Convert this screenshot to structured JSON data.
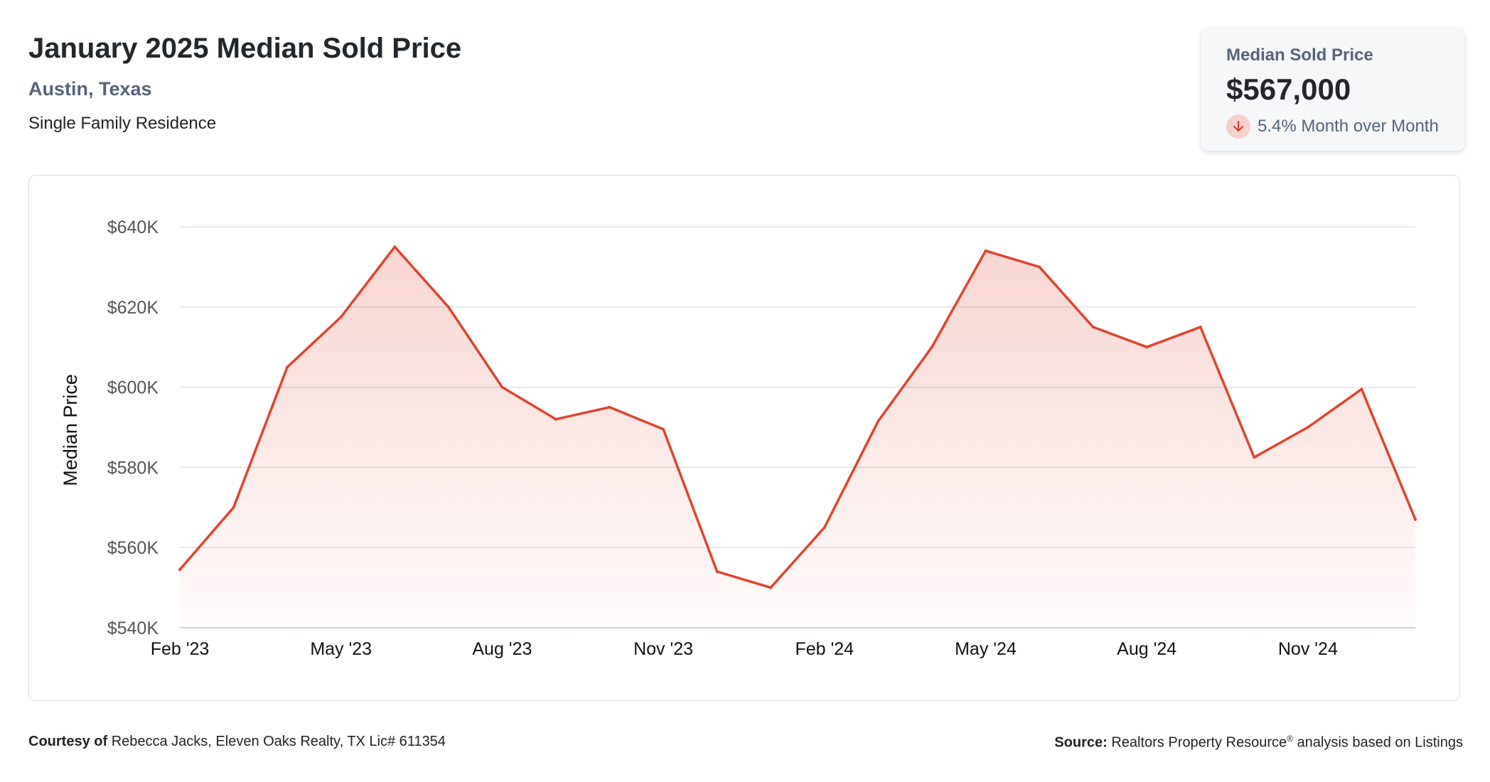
{
  "header": {
    "title": "January 2025 Median Sold Price",
    "location": "Austin, Texas",
    "property_type": "Single Family Residence"
  },
  "kpi": {
    "label": "Median Sold Price",
    "value": "$567,000",
    "change": "5.4% Month over Month",
    "direction_icon": "arrow-down-icon",
    "accent_color": "#e04430"
  },
  "chart_data": {
    "type": "area",
    "ylabel": "Median Price",
    "xlabel": "",
    "x": [
      "Feb '23",
      "Mar '23",
      "Apr '23",
      "May '23",
      "Jun '23",
      "Jul '23",
      "Aug '23",
      "Sep '23",
      "Oct '23",
      "Nov '23",
      "Dec '23",
      "Jan '24",
      "Feb '24",
      "Mar '24",
      "Apr '24",
      "May '24",
      "Jun '24",
      "Jul '24",
      "Aug '24",
      "Sep '24",
      "Oct '24",
      "Nov '24",
      "Dec '24",
      "Jan '25"
    ],
    "values": [
      554500,
      570000,
      605000,
      617500,
      635000,
      620000,
      600000,
      592000,
      595000,
      589500,
      554000,
      550000,
      565000,
      591500,
      610000,
      634000,
      630000,
      615000,
      610000,
      615000,
      582500,
      590000,
      599500,
      567000
    ],
    "xticks": [
      "Feb '23",
      "May '23",
      "Aug '23",
      "Nov '23",
      "Feb '24",
      "May '24",
      "Aug '24",
      "Nov '24"
    ],
    "yticks": [
      "$540K",
      "$560K",
      "$580K",
      "$600K",
      "$620K",
      "$640K"
    ],
    "ylim": [
      540000,
      640000
    ],
    "grid": true,
    "line_color": "#e04430"
  },
  "footer": {
    "courtesy_label": "Courtesy of",
    "courtesy_text": "Rebecca Jacks, Eleven Oaks Realty, TX Lic# 611354",
    "source_label": "Source:",
    "source_text_a": "Realtors Property Resource",
    "source_sup": "®",
    "source_text_b": " analysis based on Listings"
  }
}
